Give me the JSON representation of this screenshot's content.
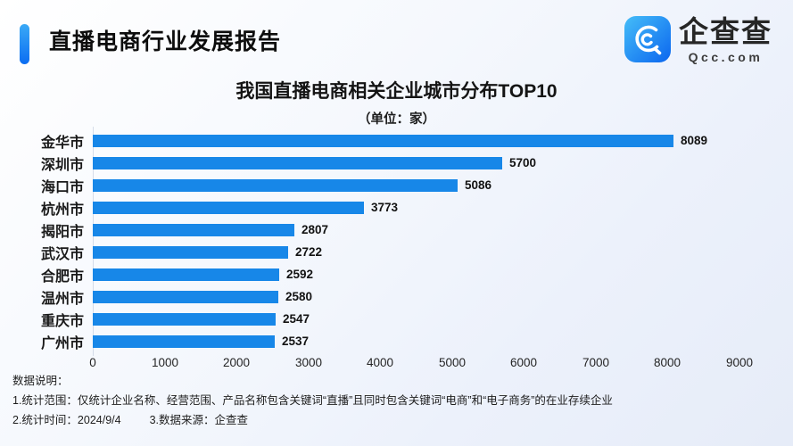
{
  "header": {
    "report_title": "直播电商行业发展报告",
    "brand": {
      "name": "企查查",
      "domain": "Qcc.com"
    }
  },
  "chart_data": {
    "type": "bar",
    "orientation": "horizontal",
    "title": "我国直播电商相关企业城市分布TOP10",
    "subtitle": "（单位：家）",
    "unit": "家",
    "categories": [
      "金华市",
      "深圳市",
      "海口市",
      "杭州市",
      "揭阳市",
      "武汉市",
      "合肥市",
      "温州市",
      "重庆市",
      "广州市"
    ],
    "values": [
      8089,
      5700,
      5086,
      3773,
      2807,
      2722,
      2592,
      2580,
      2547,
      2537
    ],
    "x_ticks": [
      0,
      1000,
      2000,
      3000,
      4000,
      5000,
      6000,
      7000,
      8000,
      9000
    ],
    "xlim": [
      0,
      9000
    ],
    "grid": false,
    "legend": false,
    "bar_color": "#1787e8"
  },
  "footnotes": {
    "heading": "数据说明：",
    "line1": "1.统计范围：仅统计企业名称、经营范围、产品名称包含关键词“直播”且同时包含关键词“电商”和“电子商务”的在业存续企业",
    "line2_time": "2.统计时间：2024/9/4",
    "line2_source": "3.数据来源：企查查"
  },
  "colors": {
    "bar": "#1787e8",
    "accent_gradient_top": "#3aa9f6",
    "accent_gradient_bottom": "#0b6df2",
    "background_start": "#ffffff",
    "background_end": "#e6ecf8",
    "text": "#161616"
  }
}
